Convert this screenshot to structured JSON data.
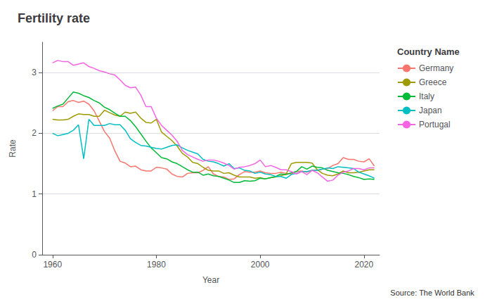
{
  "chart_data": {
    "type": "line",
    "title": "Fertility rate",
    "xlabel": "Year",
    "ylabel": "Rate",
    "source": "Source: The World Bank",
    "legend_title": "Country Name",
    "legend": "upper right",
    "grid": true,
    "xlim": [
      1958,
      2023
    ],
    "xticks": [
      1960,
      1980,
      2000,
      2020
    ],
    "ylim": [
      0,
      3.5
    ],
    "yticks": [
      0,
      1,
      2,
      3
    ],
    "x": [
      1960,
      1961,
      1962,
      1963,
      1964,
      1965,
      1966,
      1967,
      1968,
      1969,
      1970,
      1971,
      1972,
      1973,
      1974,
      1975,
      1976,
      1977,
      1978,
      1979,
      1980,
      1981,
      1982,
      1983,
      1984,
      1985,
      1986,
      1987,
      1988,
      1989,
      1990,
      1991,
      1992,
      1993,
      1994,
      1995,
      1996,
      1997,
      1998,
      1999,
      2000,
      2001,
      2002,
      2003,
      2004,
      2005,
      2006,
      2007,
      2008,
      2009,
      2010,
      2011,
      2012,
      2013,
      2014,
      2015,
      2016,
      2017,
      2018,
      2019,
      2020,
      2021,
      2022
    ],
    "series": [
      {
        "name": "Germany",
        "color": "#F8766D",
        "values": [
          2.37,
          2.44,
          2.44,
          2.52,
          2.54,
          2.51,
          2.53,
          2.48,
          2.37,
          2.2,
          2.03,
          1.92,
          1.71,
          1.54,
          1.51,
          1.45,
          1.46,
          1.4,
          1.38,
          1.38,
          1.44,
          1.43,
          1.41,
          1.33,
          1.29,
          1.28,
          1.34,
          1.35,
          1.35,
          1.39,
          1.45,
          1.33,
          1.29,
          1.28,
          1.24,
          1.25,
          1.32,
          1.37,
          1.36,
          1.36,
          1.38,
          1.35,
          1.34,
          1.34,
          1.36,
          1.34,
          1.33,
          1.37,
          1.38,
          1.36,
          1.39,
          1.39,
          1.41,
          1.42,
          1.47,
          1.5,
          1.6,
          1.57,
          1.57,
          1.54,
          1.53,
          1.58,
          1.46
        ]
      },
      {
        "name": "Greece",
        "color": "#9E9A00",
        "values": [
          2.23,
          2.22,
          2.22,
          2.23,
          2.28,
          2.32,
          2.31,
          2.31,
          2.28,
          2.28,
          2.38,
          2.34,
          2.3,
          2.28,
          2.35,
          2.33,
          2.35,
          2.25,
          2.18,
          2.17,
          2.23,
          2.02,
          1.95,
          1.88,
          1.79,
          1.67,
          1.61,
          1.52,
          1.5,
          1.44,
          1.39,
          1.38,
          1.38,
          1.34,
          1.35,
          1.31,
          1.28,
          1.28,
          1.28,
          1.26,
          1.27,
          1.25,
          1.27,
          1.28,
          1.3,
          1.33,
          1.5,
          1.52,
          1.52,
          1.52,
          1.51,
          1.4,
          1.34,
          1.31,
          1.3,
          1.33,
          1.38,
          1.35,
          1.35,
          1.36,
          1.38,
          1.4,
          1.4
        ]
      },
      {
        "name": "Italy",
        "color": "#00BA38",
        "values": [
          2.41,
          2.45,
          2.48,
          2.58,
          2.68,
          2.66,
          2.62,
          2.59,
          2.54,
          2.5,
          2.43,
          2.39,
          2.33,
          2.28,
          2.28,
          2.21,
          2.11,
          1.99,
          1.87,
          1.76,
          1.68,
          1.6,
          1.58,
          1.53,
          1.5,
          1.45,
          1.4,
          1.36,
          1.36,
          1.31,
          1.33,
          1.3,
          1.29,
          1.26,
          1.23,
          1.19,
          1.19,
          1.22,
          1.21,
          1.22,
          1.26,
          1.25,
          1.27,
          1.29,
          1.33,
          1.32,
          1.35,
          1.37,
          1.45,
          1.41,
          1.46,
          1.44,
          1.43,
          1.39,
          1.37,
          1.35,
          1.34,
          1.32,
          1.29,
          1.27,
          1.24,
          1.25,
          1.24
        ]
      },
      {
        "name": "Japan",
        "color": "#00BFC4",
        "values": [
          2.0,
          1.96,
          1.98,
          2.0,
          2.05,
          2.14,
          1.58,
          2.23,
          2.13,
          2.13,
          2.13,
          2.16,
          2.14,
          2.14,
          2.05,
          1.91,
          1.85,
          1.8,
          1.79,
          1.77,
          1.75,
          1.74,
          1.77,
          1.8,
          1.81,
          1.76,
          1.72,
          1.69,
          1.66,
          1.57,
          1.54,
          1.53,
          1.5,
          1.46,
          1.5,
          1.42,
          1.43,
          1.39,
          1.38,
          1.34,
          1.36,
          1.33,
          1.32,
          1.29,
          1.29,
          1.26,
          1.32,
          1.34,
          1.37,
          1.37,
          1.39,
          1.39,
          1.41,
          1.43,
          1.42,
          1.45,
          1.44,
          1.43,
          1.42,
          1.36,
          1.33,
          1.3,
          1.26
        ]
      },
      {
        "name": "Portugal",
        "color": "#F564E3",
        "values": [
          3.16,
          3.2,
          3.18,
          3.18,
          3.12,
          3.14,
          3.16,
          3.1,
          3.07,
          3.03,
          3.01,
          2.98,
          2.96,
          2.88,
          2.79,
          2.75,
          2.76,
          2.63,
          2.44,
          2.44,
          2.25,
          2.13,
          2.05,
          1.97,
          1.87,
          1.72,
          1.65,
          1.61,
          1.57,
          1.54,
          1.56,
          1.56,
          1.54,
          1.51,
          1.47,
          1.41,
          1.44,
          1.45,
          1.47,
          1.5,
          1.56,
          1.45,
          1.47,
          1.44,
          1.4,
          1.4,
          1.37,
          1.33,
          1.37,
          1.32,
          1.39,
          1.35,
          1.28,
          1.21,
          1.23,
          1.31,
          1.36,
          1.38,
          1.42,
          1.42,
          1.4,
          1.43,
          1.43
        ]
      }
    ]
  }
}
